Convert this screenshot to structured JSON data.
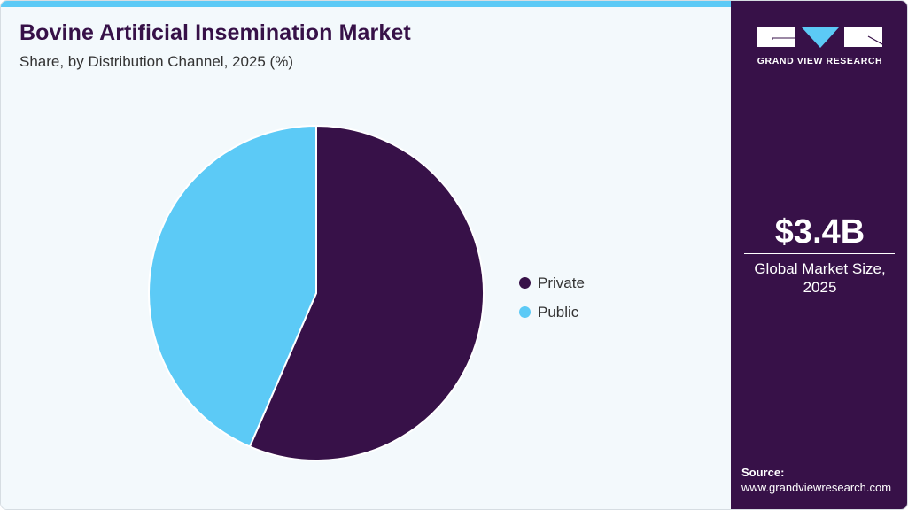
{
  "header": {
    "title": "Bovine Artificial Insemination Market",
    "subtitle": "Share, by Distribution Channel, 2025 (%)"
  },
  "colors": {
    "accent": "#5ccaf6",
    "brand_dark": "#371148",
    "background": "#f3f9fc"
  },
  "legend": [
    {
      "label": "Private",
      "color": "#371148"
    },
    {
      "label": "Public",
      "color": "#5ccaf6"
    }
  ],
  "sidebar": {
    "logo_text": "GRAND VIEW RESEARCH",
    "market_value": "$3.4B",
    "market_label_line1": "Global Market Size,",
    "market_label_line2": "2025",
    "source_label": "Source:",
    "source_url": "www.grandviewresearch.com"
  },
  "chart_data": {
    "type": "pie",
    "title": "Bovine Artificial Insemination Market",
    "subtitle": "Share, by Distribution Channel, 2025 (%)",
    "categories": [
      "Private",
      "Public"
    ],
    "values": [
      56.5,
      43.5
    ],
    "colors": [
      "#371148",
      "#5ccaf6"
    ],
    "start_angle": "12 o'clock, clockwise",
    "legend_position": "right",
    "data_labels": false
  }
}
